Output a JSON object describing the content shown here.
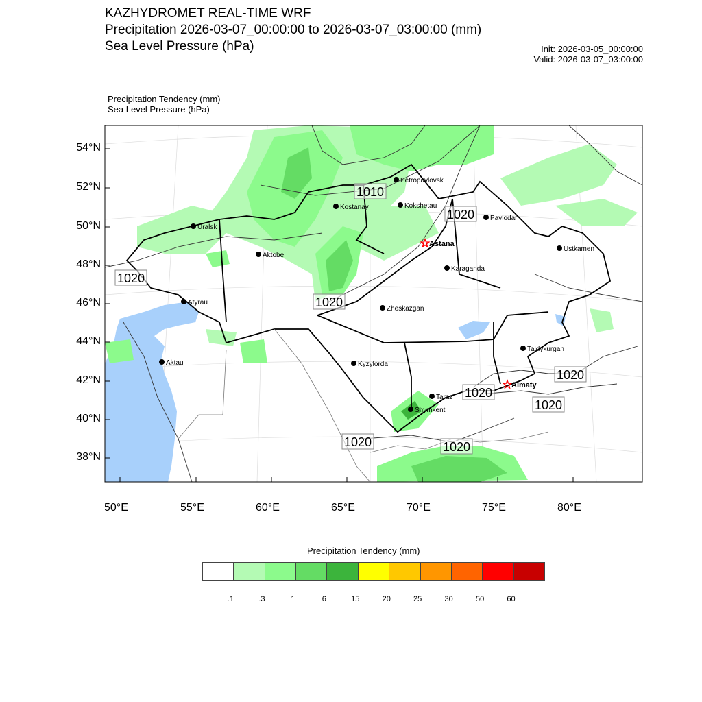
{
  "header": {
    "title": "KAZHYDROMET REAL-TIME WRF",
    "subtitle1": "Precipitation 2026-03-07_00:00:00 to 2026-03-07_03:00:00 (mm)",
    "subtitle2": "Sea Level Pressure  (hPa)",
    "init": "Init: 2026-03-05_00:00:00",
    "valid": "Valid: 2026-03-07_03:00:00"
  },
  "legend_top": {
    "line1": "Precipitation Tendency   (mm)",
    "line2": "Sea Level Pressure   (hPa)"
  },
  "axes": {
    "lat_labels": [
      "54°N",
      "52°N",
      "50°N",
      "48°N",
      "46°N",
      "44°N",
      "42°N",
      "40°N",
      "38°N"
    ],
    "lon_labels": [
      "50°E",
      "55°E",
      "60°E",
      "65°E",
      "70°E",
      "75°E",
      "80°E"
    ]
  },
  "cities": [
    {
      "name": "Petropavlovsk",
      "capital": false
    },
    {
      "name": "Kostanay",
      "capital": false
    },
    {
      "name": "Kokshetau",
      "capital": false
    },
    {
      "name": "Pavlodar",
      "capital": false
    },
    {
      "name": "Uralsk",
      "capital": false
    },
    {
      "name": "Astana",
      "capital": true
    },
    {
      "name": "Ustkamen",
      "capital": false
    },
    {
      "name": "Aktobe",
      "capital": false
    },
    {
      "name": "Karaganda",
      "capital": false
    },
    {
      "name": "Atyrau",
      "capital": false
    },
    {
      "name": "Zheskazgan",
      "capital": false
    },
    {
      "name": "Aktau",
      "capital": false
    },
    {
      "name": "Kyzylorda",
      "capital": false
    },
    {
      "name": "Taldykurgan",
      "capital": false
    },
    {
      "name": "Almaty",
      "capital": true
    },
    {
      "name": "Taraz",
      "capital": false
    },
    {
      "name": "Shymkent",
      "capital": false
    }
  ],
  "contour_labels": [
    "1010",
    "1020",
    "1020",
    "1020",
    "1020",
    "1020",
    "1020",
    "1020",
    "1020"
  ],
  "colorbar": {
    "title": "Precipitation Tendency (mm)",
    "colors": [
      "#ffffff",
      "#b4fab4",
      "#8cfa8c",
      "#64dc64",
      "#3cb43c",
      "#ffff00",
      "#ffc800",
      "#ff9600",
      "#ff6400",
      "#ff0000",
      "#c80000"
    ],
    "labels": [
      ".1",
      ".3",
      "1",
      "6",
      "15",
      "20",
      "25",
      "30",
      "50",
      "60"
    ]
  },
  "colors": {
    "water": "#a8d0fb",
    "capital": "#ff0000"
  }
}
